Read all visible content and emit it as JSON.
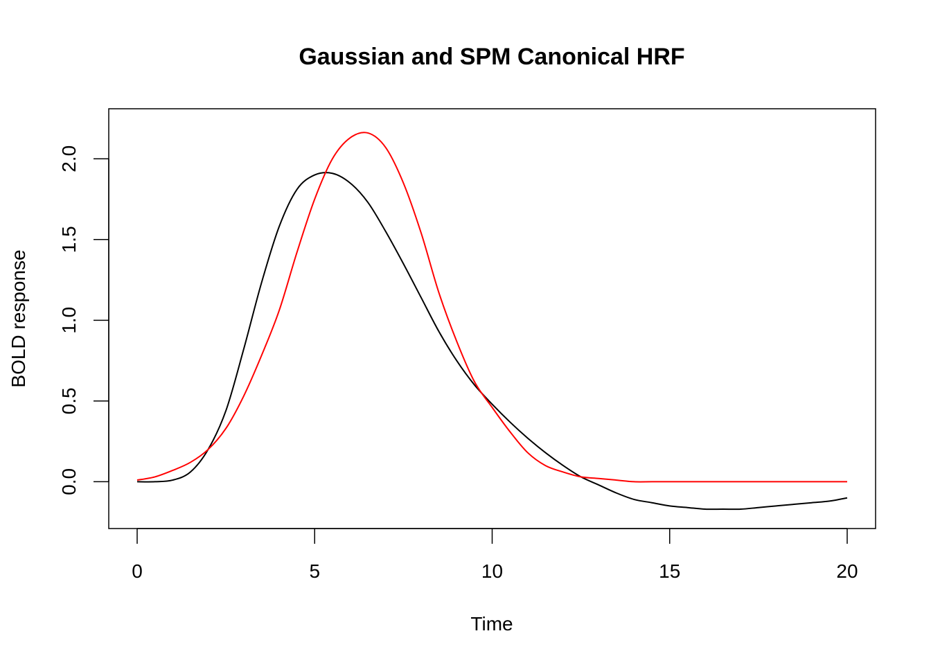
{
  "chart_data": {
    "type": "line",
    "title": "Gaussian and SPM Canonical HRF",
    "xlabel": "Time",
    "ylabel": "BOLD response",
    "xlim": [
      -0.8,
      20.8
    ],
    "ylim": [
      -0.29,
      2.31
    ],
    "x_ticks": [
      0,
      5,
      10,
      15,
      20
    ],
    "x_tick_labels": [
      "0",
      "5",
      "10",
      "15",
      "20"
    ],
    "y_ticks": [
      0.0,
      0.5,
      1.0,
      1.5,
      2.0
    ],
    "y_tick_labels": [
      "0.0",
      "0.5",
      "1.0",
      "1.5",
      "2.0"
    ],
    "grid": false,
    "legend": "none",
    "series": [
      {
        "color": "#000000",
        "x": [
          0,
          0.5,
          1,
          1.5,
          2,
          2.5,
          3,
          3.5,
          4,
          4.5,
          5,
          5.5,
          6,
          6.5,
          7,
          7.5,
          8,
          8.5,
          9,
          9.5,
          10,
          10.5,
          11,
          11.5,
          12,
          12.5,
          13,
          13.5,
          14,
          14.5,
          15,
          15.5,
          16,
          16.5,
          17,
          17.5,
          18,
          18.5,
          19,
          19.5,
          20
        ],
        "y": [
          0.0,
          0.0,
          0.01,
          0.06,
          0.2,
          0.44,
          0.82,
          1.23,
          1.58,
          1.81,
          1.9,
          1.91,
          1.85,
          1.73,
          1.55,
          1.35,
          1.14,
          0.93,
          0.75,
          0.6,
          0.48,
          0.37,
          0.27,
          0.18,
          0.1,
          0.03,
          -0.02,
          -0.07,
          -0.11,
          -0.13,
          -0.15,
          -0.16,
          -0.17,
          -0.17,
          -0.17,
          -0.16,
          -0.15,
          -0.14,
          -0.13,
          -0.12,
          -0.1
        ]
      },
      {
        "color": "#ff0000",
        "x": [
          0,
          0.5,
          1,
          1.5,
          2,
          2.5,
          3,
          3.5,
          4,
          4.5,
          5,
          5.5,
          6,
          6.5,
          7,
          7.5,
          8,
          8.5,
          9,
          9.5,
          10,
          10.5,
          11,
          11.5,
          12,
          12.5,
          13,
          13.5,
          14,
          14.5,
          15,
          15.5,
          16,
          16.5,
          17,
          17.5,
          18,
          18.5,
          19,
          19.5,
          20
        ],
        "y": [
          0.01,
          0.03,
          0.07,
          0.12,
          0.2,
          0.33,
          0.53,
          0.78,
          1.06,
          1.42,
          1.75,
          2.0,
          2.13,
          2.16,
          2.07,
          1.85,
          1.54,
          1.17,
          0.87,
          0.62,
          0.46,
          0.31,
          0.18,
          0.1,
          0.06,
          0.03,
          0.02,
          0.01,
          0.0,
          0.0,
          0.0,
          0.0,
          0.0,
          0.0,
          0.0,
          0.0,
          0.0,
          0.0,
          0.0,
          0.0,
          0.0
        ]
      }
    ]
  }
}
